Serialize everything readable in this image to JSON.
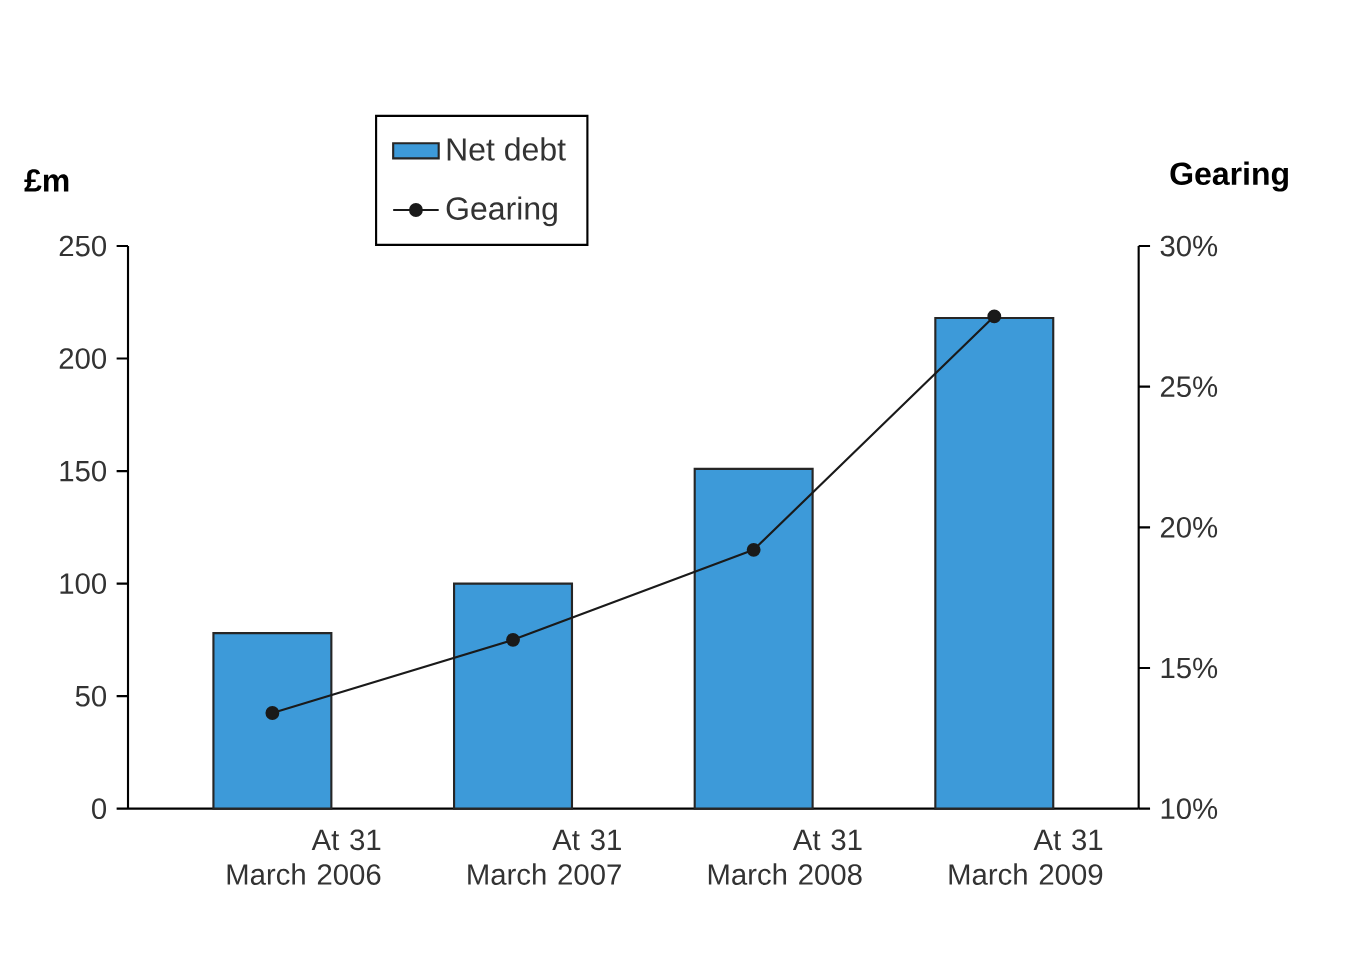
{
  "chart_data": {
    "type": "bar",
    "categories": [
      "At 31 March 2006",
      "At 31 March 2007",
      "At 31 March 2008",
      "At 31 March 2009"
    ],
    "series": [
      {
        "name": "Net debt",
        "color": "#3d9ad9",
        "values": [
          78,
          100,
          151,
          218
        ]
      },
      {
        "name": "Gearing",
        "type": "line",
        "axis": "y2",
        "color": "#1a1a1a",
        "values": [
          13.4,
          16.0,
          19.2,
          27.5
        ]
      }
    ],
    "ylabel": "£m",
    "y2label": "Gearing",
    "ylim": [
      0,
      250
    ],
    "yticks": [
      0,
      50,
      100,
      150,
      200,
      250
    ],
    "y2lim": [
      10,
      30
    ],
    "y2ticks": [
      {
        "value": 10,
        "label": "10%"
      },
      {
        "value": 15,
        "label": "15%"
      },
      {
        "value": 20,
        "label": "20%"
      },
      {
        "value": 25,
        "label": "25%"
      },
      {
        "value": 30,
        "label": "30%"
      }
    ],
    "marker": "circle",
    "legend": "top"
  }
}
